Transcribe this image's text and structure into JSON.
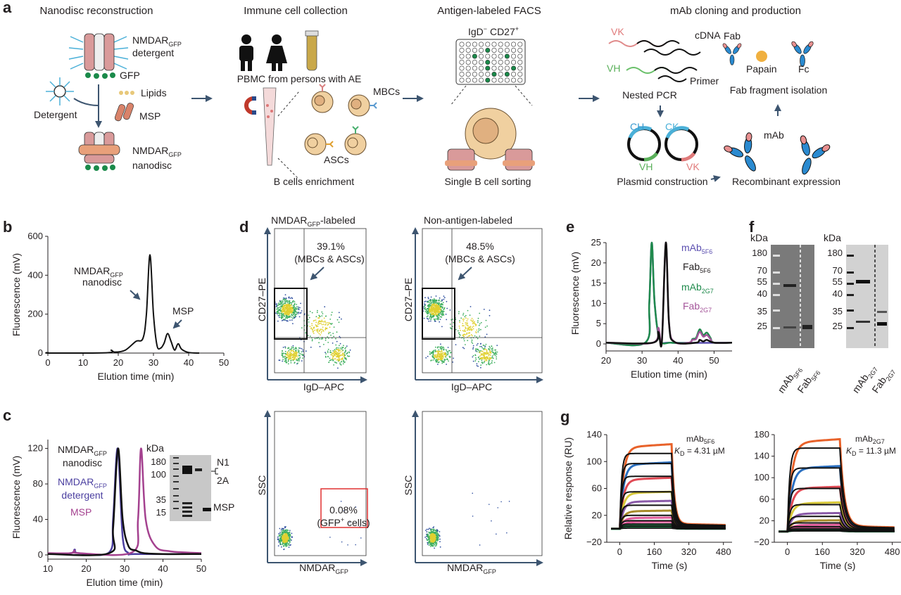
{
  "panel_letters": [
    "a",
    "b",
    "c",
    "d",
    "e",
    "f",
    "g"
  ],
  "panel_a": {
    "titles": [
      "Nanodisc reconstruction",
      "Immune cell collection",
      "Antigen-labeled FACS",
      "mAb cloning and production"
    ],
    "nanodisc": {
      "nmdar": "NMDAR",
      "gfp_sub": "GFP",
      "detergent_word": "detergent",
      "gfp": "GFP",
      "lipids": "Lipids",
      "detergent": "Detergent",
      "msp": "MSP",
      "nanodisc_word": "nanodisc"
    },
    "immune": {
      "pbmc": "PBMC from persons with AE",
      "mbcs": "MBCs",
      "ascs": "ASCs",
      "enrichment": "B cells enrichment"
    },
    "facs": {
      "igd": "IgD",
      "igd_sup": "−",
      "cd27": " CD27",
      "cd27_sup": "+",
      "sorting": "Single B cell sorting"
    },
    "cloning": {
      "vk": "VK",
      "cdna": "cDNA",
      "vh": "VH",
      "primer": "Primer",
      "nested_pcr": "Nested PCR",
      "fab": "Fab",
      "papain": "Papain",
      "fc": "Fc",
      "fab_isolation": "Fab fragment isolation",
      "ch": "CH",
      "ck": "CK",
      "vh2": "VH",
      "vk2": "VK",
      "plasmid": "Plasmid construction",
      "mab": "mAb",
      "recombinant": "Recombinant expression"
    }
  },
  "panel_b": {
    "peak_label_1": "NMDAR",
    "peak_label_1_sub": "GFP",
    "peak_label_2": "nanodisc",
    "peak_label_3": "MSP"
  },
  "panel_c": {
    "legend": [
      {
        "name": "NMDAR",
        "sub": "GFP",
        "line2": "nanodisc",
        "color": "#111111"
      },
      {
        "name": "NMDAR",
        "sub": "GFP",
        "line2": "detergent",
        "color": "#4b3fa0"
      },
      {
        "name": "MSP",
        "sub": "",
        "line2": "",
        "color": "#a4418f"
      }
    ],
    "gel": {
      "unit": "kDa",
      "markers": [
        "180",
        "100",
        "35",
        "15"
      ],
      "labels": [
        "N1",
        "2A",
        "MSP"
      ]
    }
  },
  "panel_d": {
    "top_titles": [
      {
        "pre": "NMDAR",
        "sub": "GFP",
        "post": "-labeled"
      },
      {
        "pre": "Non-antigen-labeled",
        "sub": "",
        "post": ""
      }
    ],
    "gates": [
      {
        "pct": "39.1%",
        "desc": "(MBCs & ASCs)"
      },
      {
        "pct": "48.5%",
        "desc": "(MBCs & ASCs)"
      }
    ],
    "top_ylabel": "CD27–PE",
    "top_xlabel": "IgD–APC",
    "bottom_ylabel": "SSC",
    "bottom_xlabel": "NMDAR",
    "bottom_xlabel_sub": "GFP",
    "bottom_gate": {
      "pct": "0.08%",
      "desc_pre": "(GFP",
      "desc_sup": "+",
      "desc_post": " cells)",
      "color": "#e03030"
    }
  },
  "panel_f": {
    "unit": "kDa",
    "gels": [
      {
        "markers": [
          "180",
          "70",
          "55",
          "40",
          "35",
          "25"
        ],
        "lanes": [
          {
            "name": "mAb",
            "sub": "5F6"
          },
          {
            "name": "Fab",
            "sub": "5F6"
          }
        ]
      },
      {
        "markers": [
          "180",
          "70",
          "55",
          "40",
          "35",
          "25"
        ],
        "lanes": [
          {
            "name": "mAb",
            "sub": "2G7"
          },
          {
            "name": "Fab",
            "sub": "2G7"
          }
        ]
      }
    ]
  },
  "chart_data": [
    {
      "panel": "b",
      "type": "line",
      "xlabel": "Elution time (min)",
      "ylabel": "Fluorescence (mV)",
      "xlim": [
        0,
        50
      ],
      "ylim": [
        0,
        600
      ],
      "xticks": [
        "0",
        "10",
        "20",
        "30",
        "40",
        "50"
      ],
      "yticks": [
        "0",
        "200",
        "400",
        "600"
      ],
      "series": [
        {
          "color": "#111111",
          "x": [
            0,
            1,
            17,
            18,
            19,
            22,
            25,
            27,
            28,
            29,
            30,
            31,
            32,
            33,
            34,
            35,
            36,
            37,
            38,
            40,
            43
          ],
          "y": [
            3,
            0,
            2,
            15,
            5,
            15,
            60,
            75,
            200,
            505,
            200,
            40,
            25,
            50,
            100,
            60,
            15,
            48,
            20,
            3,
            0
          ]
        }
      ]
    },
    {
      "panel": "c",
      "type": "line",
      "xlabel": "Elution time (min)",
      "ylabel": "Fluorescence (mV)",
      "xlim": [
        10,
        50
      ],
      "ylim": [
        0,
        130
      ],
      "xticks": [
        "10",
        "20",
        "30",
        "40",
        "50"
      ],
      "yticks": [
        "0",
        "40",
        "80",
        "120"
      ],
      "series": [
        {
          "name": "NMDARGFP detergent",
          "color": "#4b3fa0",
          "x": [
            10,
            16,
            17,
            18,
            26,
            27,
            28.2,
            29.5,
            31,
            33,
            50
          ],
          "y": [
            1,
            2,
            6,
            2,
            3,
            40,
            120,
            20,
            2,
            1,
            1
          ]
        },
        {
          "name": "MSP",
          "color": "#a4418f",
          "x": [
            10,
            16,
            17,
            18,
            32,
            33.5,
            34.3,
            35.5,
            38,
            42,
            50
          ],
          "y": [
            2,
            2,
            5,
            2,
            3,
            40,
            120,
            40,
            10,
            4,
            2
          ]
        },
        {
          "name": "NMDARGFP nanodisc",
          "color": "#111111",
          "x": [
            10,
            26,
            27,
            28.3,
            29.5,
            31,
            33,
            35,
            40,
            50
          ],
          "y": [
            1,
            2,
            30,
            120,
            40,
            10,
            5,
            2,
            1,
            1
          ]
        }
      ]
    },
    {
      "panel": "e",
      "type": "line",
      "xlabel": "Elution time (min)",
      "ylabel": "Fluorescence (mV)",
      "xlim": [
        20,
        55
      ],
      "ylim": [
        0,
        25
      ],
      "xticks": [
        "20",
        "30",
        "40",
        "50"
      ],
      "yticks": [
        "0",
        "5",
        "10",
        "15",
        "20",
        "25"
      ],
      "series": [
        {
          "name": "mAb5F6",
          "sub": "5F6",
          "label": "mAb",
          "color": "#5b4fb0",
          "x": [
            20,
            31,
            32,
            32.7,
            33.5,
            35,
            38,
            55
          ],
          "y": [
            0.3,
            0.4,
            10,
            25,
            10,
            1,
            0.3,
            0.3
          ]
        },
        {
          "name": "mAb2G7",
          "sub": "2G7",
          "label": "mAb",
          "color": "#1f8a4c",
          "x": [
            20,
            31,
            32,
            32.7,
            33.5,
            35,
            38,
            43,
            44,
            45,
            46,
            47,
            48,
            49,
            50,
            55
          ],
          "y": [
            0.3,
            0.4,
            10,
            25,
            10,
            1,
            0.3,
            0.3,
            1.2,
            1.5,
            3.6,
            2.2,
            2.8,
            1.5,
            0.3,
            0.3
          ]
        },
        {
          "name": "Fab2G7",
          "sub": "2G7",
          "label": "Fab",
          "color": "#a4559a",
          "x": [
            20,
            33,
            34.5,
            35.5,
            36.6,
            37.5,
            39,
            43,
            44,
            45,
            46,
            47,
            48,
            49,
            50,
            55
          ],
          "y": [
            0.3,
            0.3,
            4,
            0.8,
            25,
            5,
            0.5,
            0.3,
            1,
            1.2,
            3,
            1.8,
            2.2,
            1.2,
            0.3,
            0.3
          ]
        },
        {
          "name": "Fab5F6",
          "sub": "5F6",
          "label": "Fab",
          "color": "#111111",
          "x": [
            20,
            33,
            34.5,
            35.5,
            36.6,
            37.5,
            39,
            45,
            46,
            47,
            48,
            50,
            55
          ],
          "y": [
            0.3,
            0.3,
            3,
            0.5,
            25,
            5,
            0.5,
            0.3,
            1,
            0.6,
            1,
            0.3,
            0.3
          ]
        }
      ]
    },
    {
      "panel": "g-left",
      "type": "line",
      "xlabel": "Time (s)",
      "ylabel": "Relative response (RU)",
      "xlim": [
        -60,
        520
      ],
      "ylim": [
        -20,
        140
      ],
      "xticks": [
        "0",
        "160",
        "320",
        "480"
      ],
      "yticks": [
        "−20",
        "20",
        "60",
        "100",
        "140"
      ],
      "annotation": {
        "name": "mAb",
        "sub": "5F6",
        "kd_label": "K",
        "kd_sub": "D",
        "kd_value": " = 4.31 µM"
      },
      "injection_end_s": 240,
      "curves_rmax": [
        121,
        95,
        73,
        53,
        40,
        26,
        16,
        10,
        6,
        3
      ],
      "fits_rmax": [
        112,
        97,
        78,
        55,
        35,
        20,
        12,
        7,
        4,
        1
      ],
      "curve_colors": [
        "#e8622a",
        "#2a6fc0",
        "#e04a55",
        "#d8c93a",
        "#8a5aa8",
        "#a88a2a",
        "#e05a9a",
        "#e05a9a",
        "#2a9a5a",
        "#2a9a5a"
      ]
    },
    {
      "panel": "g-right",
      "type": "line",
      "xlabel": "Time (s)",
      "ylabel": "",
      "xlim": [
        -60,
        520
      ],
      "ylim": [
        -20,
        180
      ],
      "xticks": [
        "0",
        "160",
        "320",
        "480"
      ],
      "yticks": [
        "−20",
        "20",
        "60",
        "100",
        "140",
        "180"
      ],
      "annotation": {
        "name": "mAb",
        "sub": "2G7",
        "kd_label": "K",
        "kd_sub": "D",
        "kd_value": " = 11.3 µM"
      },
      "injection_end_s": 240,
      "curves_rmax": [
        165,
        117,
        80,
        52,
        33,
        20,
        12,
        7,
        4,
        2
      ],
      "fits_rmax": [
        155,
        118,
        80,
        50,
        28,
        16,
        9,
        5,
        2,
        1
      ],
      "curve_colors": [
        "#e8622a",
        "#2a6fc0",
        "#e04a55",
        "#d8c93a",
        "#8a5aa8",
        "#a88a2a",
        "#e05a9a",
        "#e05a9a",
        "#2a9a5a",
        "#2a9a5a"
      ]
    }
  ]
}
